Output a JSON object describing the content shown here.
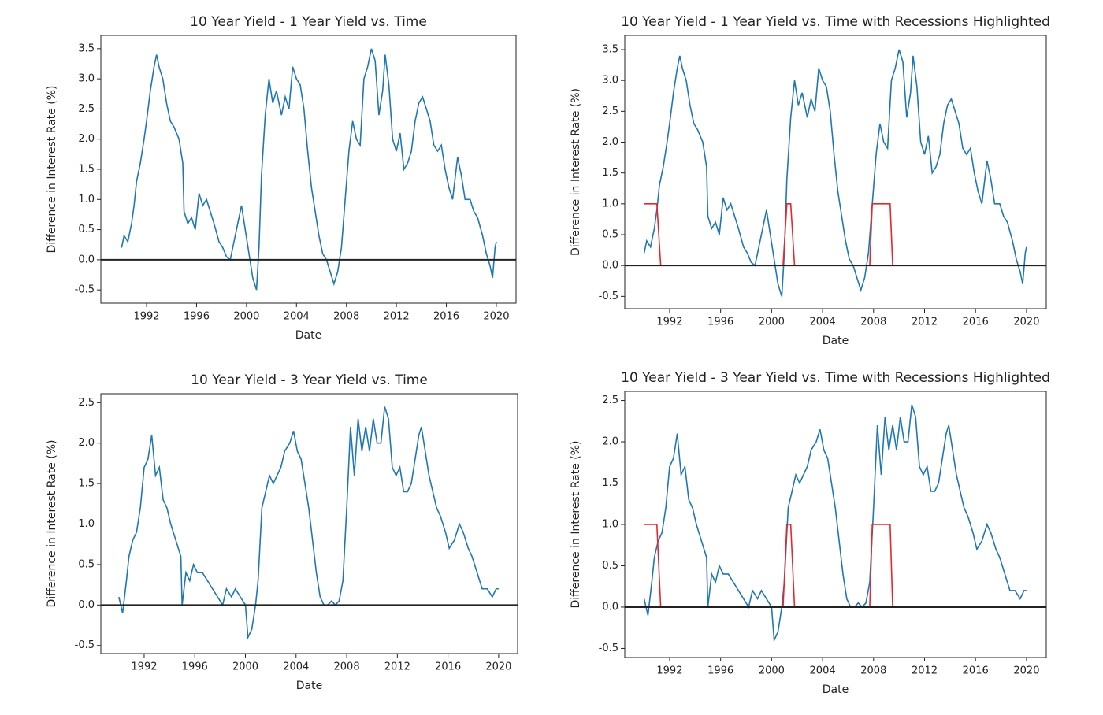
{
  "chart_data": [
    {
      "type": "line",
      "title": "10 Year Yield - 1 Year Yield vs. Time",
      "xlabel": "Date",
      "ylabel": "Difference in Interest Rate (%)",
      "xlim": [
        1988.34,
        2021.58
      ],
      "ylim": [
        -0.72,
        3.72
      ],
      "xticks": [
        1992,
        1996,
        2000,
        2004,
        2008,
        2012,
        2016,
        2020
      ],
      "yticks": [
        -0.5,
        {
          "value": 0,
          "label": "0.0"
        },
        0.5,
        {
          "value": 1,
          "label": "1.0"
        },
        1.5,
        {
          "value": 2,
          "label": "2.0"
        },
        2.5,
        {
          "value": 3,
          "label": "3.0"
        },
        3.5
      ],
      "hline": 0,
      "hline_color": "#222222",
      "series": [
        {
          "color": "#1f77b4",
          "x": [
            1990.0,
            1990.2,
            1990.5,
            1990.8,
            1991.0,
            1991.2,
            1991.5,
            1991.8,
            1992.0,
            1992.3,
            1992.6,
            1992.8,
            1993.0,
            1993.3,
            1993.6,
            1993.9,
            1994.2,
            1994.6,
            1994.9,
            1995.0,
            1995.3,
            1995.6,
            1995.9,
            1996.2,
            1996.5,
            1996.8,
            1997.1,
            1997.4,
            1997.8,
            1998.1,
            1998.4,
            1998.7,
            1999.0,
            1999.3,
            1999.6,
            1999.9,
            2000.2,
            2000.5,
            2000.8,
            2001.0,
            2001.2,
            2001.5,
            2001.8,
            2002.1,
            2002.4,
            2002.8,
            2003.1,
            2003.4,
            2003.7,
            2004.0,
            2004.3,
            2004.6,
            2004.9,
            2005.2,
            2005.5,
            2005.8,
            2006.1,
            2006.4,
            2006.7,
            2007.0,
            2007.3,
            2007.6,
            2007.9,
            2008.2,
            2008.5,
            2008.8,
            2009.1,
            2009.4,
            2009.7,
            2010.0,
            2010.3,
            2010.6,
            2010.9,
            2011.1,
            2011.4,
            2011.7,
            2012.0,
            2012.3,
            2012.6,
            2012.9,
            2013.2,
            2013.5,
            2013.8,
            2014.1,
            2014.4,
            2014.7,
            2015.0,
            2015.3,
            2015.6,
            2015.9,
            2016.2,
            2016.5,
            2016.9,
            2017.2,
            2017.5,
            2017.9,
            2018.2,
            2018.5,
            2018.9,
            2019.2,
            2019.5,
            2019.7,
            2019.9,
            2020.0
          ],
          "values": [
            0.2,
            0.4,
            0.3,
            0.6,
            0.9,
            1.3,
            1.6,
            2.0,
            2.3,
            2.8,
            3.2,
            3.4,
            3.2,
            3.0,
            2.6,
            2.3,
            2.2,
            2.0,
            1.6,
            0.8,
            0.6,
            0.7,
            0.5,
            1.1,
            0.9,
            1.0,
            0.8,
            0.6,
            0.3,
            0.2,
            0.05,
            0.0,
            0.3,
            0.6,
            0.9,
            0.5,
            0.1,
            -0.3,
            -0.5,
            0.2,
            1.4,
            2.4,
            3.0,
            2.6,
            2.8,
            2.4,
            2.7,
            2.5,
            3.2,
            3.0,
            2.9,
            2.5,
            1.8,
            1.2,
            0.8,
            0.4,
            0.1,
            0.0,
            -0.2,
            -0.4,
            -0.2,
            0.2,
            1.0,
            1.8,
            2.3,
            2.0,
            1.9,
            3.0,
            3.2,
            3.5,
            3.3,
            2.4,
            2.8,
            3.4,
            2.9,
            2.0,
            1.8,
            2.1,
            1.5,
            1.6,
            1.8,
            2.3,
            2.6,
            2.7,
            2.5,
            2.3,
            1.9,
            1.8,
            1.9,
            1.5,
            1.2,
            1.0,
            1.7,
            1.4,
            1.0,
            1.0,
            0.8,
            0.7,
            0.4,
            0.1,
            -0.1,
            -0.3,
            0.2,
            0.3
          ]
        }
      ]
    },
    {
      "type": "line",
      "title": "10 Year Yield - 1 Year Yield vs. Time with Recessions Highlighted",
      "xlabel": "Date",
      "ylabel": "Difference in Interest Rate (%)",
      "xlim": [
        1988.48,
        2021.55
      ],
      "ylim": [
        -0.7,
        3.73
      ],
      "xticks": [
        1992,
        1996,
        2000,
        2004,
        2008,
        2012,
        2016,
        2020
      ],
      "yticks": [
        -0.5,
        {
          "value": 0,
          "label": "0.0"
        },
        0.5,
        {
          "value": 1,
          "label": "1.0"
        },
        1.5,
        {
          "value": 2,
          "label": "2.0"
        },
        2.5,
        {
          "value": 3,
          "label": "3.0"
        },
        3.5
      ],
      "hline": 0,
      "hline_color": "#222222",
      "series": [
        {
          "color": "#1f77b4",
          "x": [
            1990.0,
            1990.2,
            1990.5,
            1990.8,
            1991.0,
            1991.2,
            1991.5,
            1991.8,
            1992.0,
            1992.3,
            1992.6,
            1992.8,
            1993.0,
            1993.3,
            1993.6,
            1993.9,
            1994.2,
            1994.6,
            1994.9,
            1995.0,
            1995.3,
            1995.6,
            1995.9,
            1996.2,
            1996.5,
            1996.8,
            1997.1,
            1997.4,
            1997.8,
            1998.1,
            1998.4,
            1998.7,
            1999.0,
            1999.3,
            1999.6,
            1999.9,
            2000.2,
            2000.5,
            2000.8,
            2001.0,
            2001.2,
            2001.5,
            2001.8,
            2002.1,
            2002.4,
            2002.8,
            2003.1,
            2003.4,
            2003.7,
            2004.0,
            2004.3,
            2004.6,
            2004.9,
            2005.2,
            2005.5,
            2005.8,
            2006.1,
            2006.4,
            2006.7,
            2007.0,
            2007.3,
            2007.6,
            2007.9,
            2008.2,
            2008.5,
            2008.8,
            2009.1,
            2009.4,
            2009.7,
            2010.0,
            2010.3,
            2010.6,
            2010.9,
            2011.1,
            2011.4,
            2011.7,
            2012.0,
            2012.3,
            2012.6,
            2012.9,
            2013.2,
            2013.5,
            2013.8,
            2014.1,
            2014.4,
            2014.7,
            2015.0,
            2015.3,
            2015.6,
            2015.9,
            2016.2,
            2016.5,
            2016.9,
            2017.2,
            2017.5,
            2017.9,
            2018.2,
            2018.5,
            2018.9,
            2019.2,
            2019.5,
            2019.7,
            2019.9,
            2020.0
          ],
          "values": [
            0.2,
            0.4,
            0.3,
            0.6,
            0.9,
            1.3,
            1.6,
            2.0,
            2.3,
            2.8,
            3.2,
            3.4,
            3.2,
            3.0,
            2.6,
            2.3,
            2.2,
            2.0,
            1.6,
            0.8,
            0.6,
            0.7,
            0.5,
            1.1,
            0.9,
            1.0,
            0.8,
            0.6,
            0.3,
            0.2,
            0.05,
            0.0,
            0.3,
            0.6,
            0.9,
            0.5,
            0.1,
            -0.3,
            -0.5,
            0.2,
            1.4,
            2.4,
            3.0,
            2.6,
            2.8,
            2.4,
            2.7,
            2.5,
            3.2,
            3.0,
            2.9,
            2.5,
            1.8,
            1.2,
            0.8,
            0.4,
            0.1,
            0.0,
            -0.2,
            -0.4,
            -0.2,
            0.2,
            1.0,
            1.8,
            2.3,
            2.0,
            1.9,
            3.0,
            3.2,
            3.5,
            3.3,
            2.4,
            2.8,
            3.4,
            2.9,
            2.0,
            1.8,
            2.1,
            1.5,
            1.6,
            1.8,
            2.3,
            2.6,
            2.7,
            2.5,
            2.3,
            1.9,
            1.8,
            1.9,
            1.5,
            1.2,
            1.0,
            1.7,
            1.4,
            1.0,
            1.0,
            0.8,
            0.7,
            0.4,
            0.1,
            -0.1,
            -0.3,
            0.2,
            0.3
          ]
        },
        {
          "color": "#e8262b",
          "x": [
            1990.0,
            1991.0,
            1991.3,
            2000.9,
            2001.2,
            2001.5,
            2001.8,
            2007.7,
            2007.9,
            2009.3,
            2009.5,
            2019.8
          ],
          "values": [
            1,
            1,
            0,
            0,
            1,
            1,
            0,
            0,
            1,
            1,
            0,
            0
          ]
        }
      ]
    },
    {
      "type": "line",
      "title": "10 Year Yield - 3 Year Yield vs. Time",
      "xlabel": "Date",
      "ylabel": "Difference in Interest Rate (%)",
      "xlim": [
        1988.58,
        2021.5
      ],
      "ylim": [
        -0.6,
        2.61
      ],
      "xticks": [
        1992,
        1996,
        2000,
        2004,
        2008,
        2012,
        2016,
        2020
      ],
      "yticks": [
        -0.5,
        {
          "value": 0,
          "label": "0.0"
        },
        0.5,
        {
          "value": 1,
          "label": "1.0"
        },
        1.5,
        {
          "value": 2,
          "label": "2.0"
        },
        2.5
      ],
      "hline": 0,
      "hline_color": "#222222",
      "series": [
        {
          "color": "#1f77b4",
          "x": [
            1990.0,
            1990.3,
            1990.6,
            1990.8,
            1991.1,
            1991.4,
            1991.7,
            1992.0,
            1992.3,
            1992.6,
            1992.9,
            1993.2,
            1993.5,
            1993.8,
            1994.1,
            1994.5,
            1994.9,
            1995.0,
            1995.3,
            1995.6,
            1995.9,
            1996.2,
            1996.6,
            1997.0,
            1997.4,
            1997.8,
            1998.2,
            1998.5,
            1998.9,
            1999.2,
            1999.6,
            2000.0,
            2000.2,
            2000.5,
            2000.8,
            2001.0,
            2001.3,
            2001.6,
            2001.9,
            2002.2,
            2002.5,
            2002.8,
            2003.1,
            2003.5,
            2003.8,
            2004.1,
            2004.4,
            2004.7,
            2005.0,
            2005.3,
            2005.6,
            2005.9,
            2006.2,
            2006.5,
            2006.8,
            2007.1,
            2007.4,
            2007.7,
            2008.0,
            2008.3,
            2008.6,
            2008.9,
            2009.2,
            2009.5,
            2009.8,
            2010.1,
            2010.4,
            2010.7,
            2011.0,
            2011.3,
            2011.6,
            2011.9,
            2012.2,
            2012.5,
            2012.8,
            2013.1,
            2013.4,
            2013.7,
            2013.9,
            2014.2,
            2014.5,
            2014.8,
            2015.1,
            2015.4,
            2015.8,
            2016.1,
            2016.5,
            2016.9,
            2017.2,
            2017.6,
            2017.9,
            2018.3,
            2018.7,
            2019.1,
            2019.5,
            2019.8,
            2020.0
          ],
          "values": [
            0.1,
            -0.1,
            0.3,
            0.6,
            0.8,
            0.9,
            1.2,
            1.7,
            1.8,
            2.1,
            1.6,
            1.7,
            1.3,
            1.2,
            1.0,
            0.8,
            0.6,
            0.0,
            0.4,
            0.3,
            0.5,
            0.4,
            0.4,
            0.3,
            0.2,
            0.1,
            0.0,
            0.2,
            0.1,
            0.2,
            0.1,
            0.0,
            -0.4,
            -0.3,
            0.0,
            0.3,
            1.2,
            1.4,
            1.6,
            1.5,
            1.6,
            1.7,
            1.9,
            2.0,
            2.15,
            1.9,
            1.8,
            1.5,
            1.2,
            0.8,
            0.4,
            0.1,
            0.0,
            0.0,
            0.05,
            0.0,
            0.05,
            0.3,
            1.2,
            2.2,
            1.6,
            2.3,
            1.9,
            2.2,
            1.9,
            2.3,
            2.0,
            2.0,
            2.45,
            2.3,
            1.7,
            1.6,
            1.7,
            1.4,
            1.4,
            1.5,
            1.8,
            2.1,
            2.2,
            1.9,
            1.6,
            1.4,
            1.2,
            1.1,
            0.9,
            0.7,
            0.8,
            1.0,
            0.9,
            0.7,
            0.6,
            0.4,
            0.2,
            0.2,
            0.1,
            0.2,
            0.2
          ]
        }
      ]
    },
    {
      "type": "line",
      "title": "10 Year Yield - 3 Year Yield vs. Time with Recessions Highlighted",
      "xlabel": "Date",
      "ylabel": "Difference in Interest Rate (%)",
      "xlim": [
        1988.48,
        2021.55
      ],
      "ylim": [
        -0.61,
        2.61
      ],
      "xticks": [
        1992,
        1996,
        2000,
        2004,
        2008,
        2012,
        2016,
        2020
      ],
      "yticks": [
        -0.5,
        {
          "value": 0,
          "label": "0.0"
        },
        0.5,
        {
          "value": 1,
          "label": "1.0"
        },
        1.5,
        {
          "value": 2,
          "label": "2.0"
        },
        2.5
      ],
      "hline": 0,
      "hline_color": "#222222",
      "series": [
        {
          "color": "#1f77b4",
          "x": [
            1990.0,
            1990.3,
            1990.6,
            1990.8,
            1991.1,
            1991.4,
            1991.7,
            1992.0,
            1992.3,
            1992.6,
            1992.9,
            1993.2,
            1993.5,
            1993.8,
            1994.1,
            1994.5,
            1994.9,
            1995.0,
            1995.3,
            1995.6,
            1995.9,
            1996.2,
            1996.6,
            1997.0,
            1997.4,
            1997.8,
            1998.2,
            1998.5,
            1998.9,
            1999.2,
            1999.6,
            2000.0,
            2000.2,
            2000.5,
            2000.8,
            2001.0,
            2001.3,
            2001.6,
            2001.9,
            2002.2,
            2002.5,
            2002.8,
            2003.1,
            2003.5,
            2003.8,
            2004.1,
            2004.4,
            2004.7,
            2005.0,
            2005.3,
            2005.6,
            2005.9,
            2006.2,
            2006.5,
            2006.8,
            2007.1,
            2007.4,
            2007.7,
            2008.0,
            2008.3,
            2008.6,
            2008.9,
            2009.2,
            2009.5,
            2009.8,
            2010.1,
            2010.4,
            2010.7,
            2011.0,
            2011.3,
            2011.6,
            2011.9,
            2012.2,
            2012.5,
            2012.8,
            2013.1,
            2013.4,
            2013.7,
            2013.9,
            2014.2,
            2014.5,
            2014.8,
            2015.1,
            2015.4,
            2015.8,
            2016.1,
            2016.5,
            2016.9,
            2017.2,
            2017.6,
            2017.9,
            2018.3,
            2018.7,
            2019.1,
            2019.5,
            2019.8,
            2020.0
          ],
          "values": [
            0.1,
            -0.1,
            0.3,
            0.6,
            0.8,
            0.9,
            1.2,
            1.7,
            1.8,
            2.1,
            1.6,
            1.7,
            1.3,
            1.2,
            1.0,
            0.8,
            0.6,
            0.0,
            0.4,
            0.3,
            0.5,
            0.4,
            0.4,
            0.3,
            0.2,
            0.1,
            0.0,
            0.2,
            0.1,
            0.2,
            0.1,
            0.0,
            -0.4,
            -0.3,
            0.0,
            0.3,
            1.2,
            1.4,
            1.6,
            1.5,
            1.6,
            1.7,
            1.9,
            2.0,
            2.15,
            1.9,
            1.8,
            1.5,
            1.2,
            0.8,
            0.4,
            0.1,
            0.0,
            0.0,
            0.05,
            0.0,
            0.05,
            0.3,
            1.2,
            2.2,
            1.6,
            2.3,
            1.9,
            2.2,
            1.9,
            2.3,
            2.0,
            2.0,
            2.45,
            2.3,
            1.7,
            1.6,
            1.7,
            1.4,
            1.4,
            1.5,
            1.8,
            2.1,
            2.2,
            1.9,
            1.6,
            1.4,
            1.2,
            1.1,
            0.9,
            0.7,
            0.8,
            1.0,
            0.9,
            0.7,
            0.6,
            0.4,
            0.2,
            0.2,
            0.1,
            0.2,
            0.2
          ]
        },
        {
          "color": "#e8262b",
          "x": [
            1990.0,
            1991.0,
            1991.3,
            2000.9,
            2001.2,
            2001.5,
            2001.8,
            2007.7,
            2007.9,
            2009.3,
            2009.5,
            2019.3
          ],
          "values": [
            1,
            1,
            0,
            0,
            1,
            1,
            0,
            0,
            1,
            1,
            0,
            0
          ]
        }
      ]
    }
  ]
}
